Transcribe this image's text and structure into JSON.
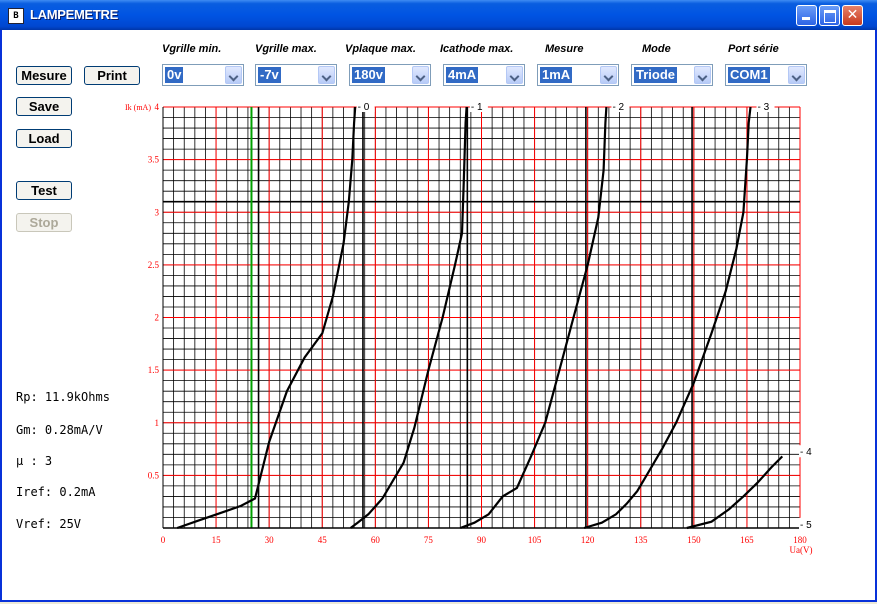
{
  "window": {
    "title": "LAMPEMETRE",
    "icon_letter": "B"
  },
  "controls": [
    {
      "label": "Vgrille min.",
      "value": "0v"
    },
    {
      "label": "Vgrille max.",
      "value": "-7v"
    },
    {
      "label": "Vplaque max.",
      "value": "180v"
    },
    {
      "label": "Icathode max.",
      "value": "4mA"
    },
    {
      "label": "Mesure",
      "value": "1mA"
    },
    {
      "label": "Mode",
      "value": "Triode"
    },
    {
      "label": "Port série",
      "value": "COM1"
    }
  ],
  "buttons": {
    "mesure": "Mesure",
    "print": "Print",
    "save": "Save",
    "load": "Load",
    "test": "Test",
    "stop": "Stop"
  },
  "readout": {
    "rp": "Rp: 11.9kOhms",
    "gm": "Gm: 0.28mA/V",
    "mu": "µ : 3",
    "iref": "Iref: 0.2mA",
    "vref": "Vref: 25V"
  },
  "colors": {
    "major_grid": "#ff0000",
    "minor_grid": "#000000",
    "curve": "#000000",
    "marker": "#00a000",
    "titlebar": "#0054e3"
  },
  "chart_data": {
    "type": "line",
    "xlabel": "Ua(V)",
    "ylabel": "Ik (mA)",
    "xlim": [
      0,
      180
    ],
    "ylim": [
      0,
      4
    ],
    "x_ticks": [
      0,
      15,
      30,
      45,
      60,
      75,
      90,
      105,
      120,
      135,
      150,
      165,
      180
    ],
    "y_ticks": [
      "0.5",
      "1",
      "1.5",
      "2",
      "2.5",
      "3",
      "3.5",
      "4"
    ],
    "vertical_marker_x": 25,
    "series": [
      {
        "name": "- 0",
        "points": [
          [
            4,
            0
          ],
          [
            10,
            0.07
          ],
          [
            16,
            0.14
          ],
          [
            22,
            0.21
          ],
          [
            26,
            0.28
          ],
          [
            30,
            0.82
          ],
          [
            35,
            1.3
          ],
          [
            40,
            1.62
          ],
          [
            45,
            1.85
          ],
          [
            48,
            2.2
          ],
          [
            51,
            2.7
          ],
          [
            52.5,
            3.1
          ],
          [
            53.5,
            3.5
          ],
          [
            54,
            3.85
          ],
          [
            54.3,
            4
          ]
        ]
      },
      {
        "name": "- 1",
        "points": [
          [
            53,
            0
          ],
          [
            55,
            0.05
          ],
          [
            58,
            0.13
          ],
          [
            62,
            0.28
          ],
          [
            65,
            0.45
          ],
          [
            68,
            0.62
          ],
          [
            71,
            0.95
          ],
          [
            75,
            1.5
          ],
          [
            79,
            2.0
          ],
          [
            82.5,
            2.5
          ],
          [
            84.5,
            2.8
          ],
          [
            85,
            3.3
          ],
          [
            85.5,
            3.85
          ],
          [
            85.8,
            4
          ]
        ]
      },
      {
        "name": "- 2",
        "points": [
          [
            84,
            0
          ],
          [
            88,
            0.05
          ],
          [
            92,
            0.13
          ],
          [
            96,
            0.3
          ],
          [
            100,
            0.38
          ],
          [
            104,
            0.68
          ],
          [
            108,
            1.0
          ],
          [
            112,
            1.5
          ],
          [
            116,
            2.0
          ],
          [
            120,
            2.5
          ],
          [
            123,
            2.95
          ],
          [
            124.5,
            3.4
          ],
          [
            125,
            3.85
          ],
          [
            125.3,
            4
          ]
        ]
      },
      {
        "name": "- 3",
        "points": [
          [
            119,
            0
          ],
          [
            124,
            0.05
          ],
          [
            128,
            0.13
          ],
          [
            131,
            0.23
          ],
          [
            134,
            0.35
          ],
          [
            137,
            0.52
          ],
          [
            141,
            0.75
          ],
          [
            145,
            1.0
          ],
          [
            150,
            1.38
          ],
          [
            155,
            1.85
          ],
          [
            159,
            2.25
          ],
          [
            162,
            2.65
          ],
          [
            164,
            3.0
          ],
          [
            165,
            3.5
          ],
          [
            165.5,
            3.85
          ],
          [
            166,
            4
          ]
        ]
      },
      {
        "name": "- 4",
        "points": [
          [
            148,
            0
          ],
          [
            155,
            0.06
          ],
          [
            160,
            0.18
          ],
          [
            164,
            0.3
          ],
          [
            168,
            0.43
          ],
          [
            172,
            0.58
          ],
          [
            175,
            0.68
          ]
        ]
      },
      {
        "name": "- 5",
        "points": []
      }
    ],
    "curve_labels": [
      {
        "text": "- 0",
        "x": 55,
        "y": 4
      },
      {
        "text": "- 1",
        "x": 87,
        "y": 4
      },
      {
        "text": "- 2",
        "x": 127,
        "y": 4
      },
      {
        "text": "- 3",
        "x": 168,
        "y": 4
      },
      {
        "text": "- 4",
        "x": 180,
        "y": 0.72
      },
      {
        "text": "- 5",
        "x": 180,
        "y": 0.03
      }
    ]
  }
}
